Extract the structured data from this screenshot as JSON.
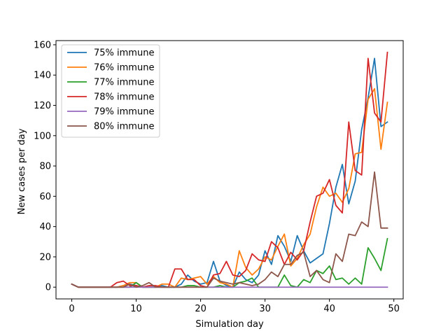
{
  "chart_data": {
    "type": "line",
    "title": "",
    "xlabel": "Simulation day",
    "ylabel": "New cases per day",
    "xlim": [
      -2.45,
      51.45
    ],
    "ylim": [
      -7.75,
      162.75
    ],
    "xticks": [
      0,
      10,
      20,
      30,
      40,
      50
    ],
    "yticks": [
      0,
      20,
      40,
      60,
      80,
      100,
      120,
      140,
      160
    ],
    "grid": false,
    "legend_position": "top-left",
    "x": [
      0,
      1,
      2,
      3,
      4,
      5,
      6,
      7,
      8,
      9,
      10,
      11,
      12,
      13,
      14,
      15,
      16,
      17,
      18,
      19,
      20,
      21,
      22,
      23,
      24,
      25,
      26,
      27,
      28,
      29,
      30,
      31,
      32,
      33,
      34,
      35,
      36,
      37,
      38,
      39,
      40,
      41,
      42,
      43,
      44,
      45,
      46,
      47,
      48,
      49
    ],
    "series": [
      {
        "name": "75% immune",
        "color": "#1f77b4",
        "values": [
          2,
          0,
          0,
          0,
          0,
          0,
          0,
          0,
          1,
          2,
          1,
          0,
          0,
          0,
          1,
          0,
          0,
          2,
          8,
          4,
          2,
          3,
          17,
          4,
          1,
          0,
          10,
          5,
          3,
          8,
          24,
          15,
          34,
          27,
          17,
          34,
          24,
          16,
          19,
          22,
          42,
          66,
          81,
          55,
          70,
          104,
          125,
          151,
          106,
          109
        ]
      },
      {
        "name": "76% immune",
        "color": "#ff7f0e",
        "values": [
          2,
          0,
          0,
          0,
          0,
          0,
          0,
          0,
          1,
          3,
          3,
          0,
          0,
          0,
          2,
          2,
          0,
          6,
          5,
          6,
          7,
          2,
          7,
          3,
          2,
          0,
          24,
          13,
          8,
          12,
          20,
          18,
          27,
          35,
          14,
          19,
          28,
          35,
          53,
          66,
          60,
          62,
          56,
          65,
          88,
          89,
          124,
          131,
          91,
          122
        ]
      },
      {
        "name": "77% immune",
        "color": "#2ca02c",
        "values": [
          2,
          0,
          0,
          0,
          0,
          0,
          0,
          0,
          0,
          0,
          3,
          0,
          0,
          0,
          0,
          0,
          0,
          0,
          1,
          1,
          0,
          0,
          0,
          1,
          0,
          0,
          3,
          4,
          6,
          0,
          0,
          0,
          0,
          8,
          1,
          0,
          5,
          3,
          11,
          9,
          14,
          5,
          6,
          2,
          6,
          2,
          26,
          19,
          11,
          32
        ]
      },
      {
        "name": "78% immune",
        "color": "#d62728",
        "values": [
          2,
          0,
          0,
          0,
          0,
          0,
          0,
          3,
          4,
          1,
          1,
          0,
          1,
          1,
          0,
          0,
          12,
          12,
          5,
          5,
          1,
          0,
          8,
          9,
          17,
          8,
          7,
          11,
          22,
          18,
          17,
          30,
          26,
          15,
          23,
          18,
          24,
          43,
          60,
          62,
          71,
          54,
          49,
          109,
          77,
          74,
          151,
          115,
          109,
          155
        ]
      },
      {
        "name": "79% immune",
        "color": "#9467bd",
        "values": [
          2,
          0,
          0,
          0,
          0,
          0,
          0,
          0,
          0,
          0,
          0,
          0,
          0,
          0,
          0,
          0,
          0,
          0,
          0,
          0,
          0,
          0,
          0,
          0,
          0,
          0,
          0,
          0,
          0,
          0,
          0,
          0,
          0,
          0,
          0,
          0,
          0,
          0,
          0,
          0,
          0,
          0,
          0,
          0,
          0,
          0,
          0,
          0,
          0,
          0
        ]
      },
      {
        "name": "80% immune",
        "color": "#8c564b",
        "values": [
          2,
          0,
          0,
          0,
          0,
          0,
          0,
          0,
          0,
          2,
          0,
          1,
          3,
          0,
          0,
          0,
          0,
          0,
          0,
          0,
          0,
          0,
          6,
          4,
          3,
          2,
          3,
          2,
          1,
          2,
          5,
          10,
          7,
          15,
          15,
          21,
          23,
          7,
          11,
          5,
          3,
          22,
          17,
          35,
          34,
          43,
          40,
          76,
          39,
          39
        ]
      }
    ]
  }
}
